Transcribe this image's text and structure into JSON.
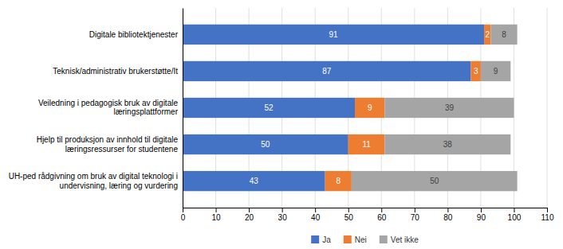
{
  "chart_data": {
    "type": "bar",
    "orientation": "horizontal",
    "stacked": true,
    "categories": [
      "UH-ped rådgivning om bruk av digital teknologi i\nundervisning, læring og vurdering",
      "Hjelp til produksjon av innhold til digitale\nlæringsressurser for studentene",
      "Veiledning i pedagogisk bruk av digitale\nlæringsplattformer",
      "Teknisk/administrativ brukerstøtte/It",
      "Digitale bibliotektjenester"
    ],
    "series": [
      {
        "name": "Ja",
        "color": "#4472C4",
        "values": [
          43,
          50,
          52,
          87,
          91
        ]
      },
      {
        "name": "Nei",
        "color": "#ED7D31",
        "values": [
          8,
          11,
          9,
          3,
          2
        ]
      },
      {
        "name": "Vet ikke",
        "color": "#A5A5A5",
        "values": [
          50,
          38,
          39,
          9,
          8
        ]
      }
    ],
    "xlim": [
      0,
      110
    ],
    "xticks": [
      0,
      10,
      20,
      30,
      40,
      50,
      60,
      70,
      80,
      90,
      100,
      110
    ],
    "grid": true,
    "legend": "bottom",
    "data_labels": true
  }
}
